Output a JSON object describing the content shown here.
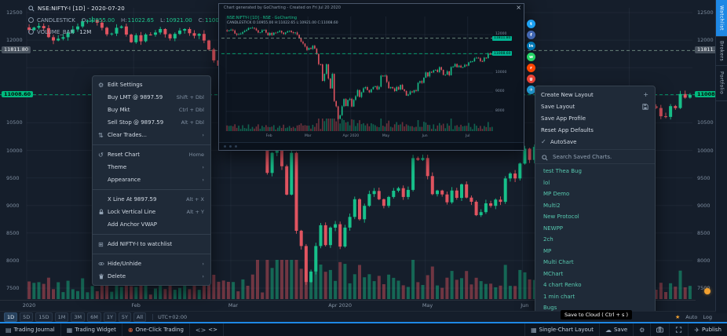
{
  "legend": {
    "symbol": "NSE:NIFTY-I [1D] - 2020-07-20",
    "candle": {
      "name": "CANDLESTICK",
      "o_label": "O:",
      "o": "10955.00",
      "h_label": "H:",
      "h": "11022.65",
      "l_label": "L:",
      "l": "10921.00",
      "c_label": "C:",
      "c": "11008.60"
    },
    "volume": {
      "name": "VOLUME_BAR",
      "value": "12M"
    }
  },
  "axes": {
    "prices": [
      12500,
      12000,
      10500,
      10000,
      9500,
      9000,
      8500,
      8000,
      7500
    ],
    "chips": [
      {
        "value": "11811.80",
        "price": 11811.8,
        "type": "dark"
      },
      {
        "value": "11008.60",
        "price": 11008.6,
        "type": "green"
      }
    ]
  },
  "chart_data": {
    "type": "candlestick",
    "symbol": "NSE:NIFTY-I",
    "interval": "1D",
    "date": "2020-07-20",
    "price_range": [
      7500,
      12500
    ],
    "last_ohlc": {
      "open": 10955.0,
      "high": 11022.65,
      "low": 10921.0,
      "close": 11008.6
    },
    "volume_label": "12M",
    "levels": [
      {
        "label": "11811.80",
        "price": 11811.8,
        "color": "#86a796"
      },
      {
        "label": "11008.60",
        "price": 11008.6,
        "color": "#00c582"
      }
    ],
    "month_ticks": [
      {
        "label": "2020",
        "index": 0
      },
      {
        "label": "Feb",
        "index": 22
      },
      {
        "label": "Mar",
        "index": 42
      },
      {
        "label": "Apr 2020",
        "index": 64
      },
      {
        "label": "May",
        "index": 82
      },
      {
        "label": "Jun",
        "index": 102
      },
      {
        "label": "Jul",
        "index": 124
      }
    ],
    "closes": [
      12182,
      12226,
      12257,
      12216,
      12053,
      11993,
      12025,
      12052,
      12129,
      12194,
      12248,
      12343,
      12352,
      12362,
      12316,
      12224,
      12106,
      12119,
      12224,
      12248,
      12101,
      11962,
      12089,
      11980,
      12101,
      12098,
      12138,
      12201,
      12107,
      12032,
      12113,
      12174,
      12201,
      12126,
      12080,
      12113,
      11993,
      11829,
      11633,
      11535,
      11380,
      11202,
      11303,
      11251,
      11422,
      11269,
      10989,
      10458,
      10451,
      9590,
      9955,
      10458,
      9711,
      9197,
      9955,
      8541,
      8263,
      7610,
      7801,
      8263,
      8641,
      8281,
      8598,
      8660,
      8254,
      8598,
      8792,
      9112,
      8749,
      8993,
      9206,
      9262,
      9112,
      8993,
      9154,
      9267,
      9313,
      9154,
      9282,
      9859,
      9826,
      9860,
      9533,
      9205,
      9270,
      9199,
      9056,
      9270,
      9137,
      9383,
      9142,
      9067,
      8823,
      8879,
      9039,
      8993,
      9106,
      9066,
      9490,
      9580,
      9490,
      9760,
      10030,
      9826,
      10062,
      10029,
      10142,
      10167,
      10046,
      10305,
      10167,
      9902,
      9914,
      10091,
      9881,
      10311,
      10334,
      10471,
      10305,
      10383,
      10288,
      10312,
      10430,
      10383,
      10552,
      10607,
      10608,
      10763,
      10799,
      10768,
      10618,
      10607,
      10802,
      10768,
      11022,
      10956,
      11008
    ]
  },
  "context_menu": {
    "items": [
      {
        "label": "Edit Settings",
        "icon": "gear"
      },
      {
        "label": "Buy LMT @ 9897.59",
        "shortcut": "Shift + Dbl"
      },
      {
        "label": "Buy Mkt",
        "shortcut": "Ctrl + Dbl"
      },
      {
        "label": "Sell Stop @ 9897.59",
        "shortcut": "Alt + Dbl"
      },
      {
        "label": "Clear Trades...",
        "icon": "swap",
        "submenu": true
      },
      {
        "divider": true
      },
      {
        "label": "Reset Chart",
        "icon": "reset",
        "shortcut": "Home"
      },
      {
        "label": "Theme",
        "submenu": true
      },
      {
        "label": "Appearance",
        "submenu": true
      },
      {
        "divider": true
      },
      {
        "label": "X Line At 9897.59",
        "shortcut": "Alt + X"
      },
      {
        "label": "Lock Vertical Line",
        "icon": "lock",
        "shortcut": "Alt + Y"
      },
      {
        "label": "Add Anchor VWAP"
      },
      {
        "divider": true
      },
      {
        "label": "Add NIFTY-I to watchlist",
        "icon": "grid-plus"
      },
      {
        "divider": true
      },
      {
        "label": "Hide/Unhide",
        "icon": "eye",
        "submenu": true
      },
      {
        "label": "Delete",
        "icon": "trash",
        "submenu": true
      }
    ]
  },
  "layout_menu": {
    "items": [
      {
        "label": "Create New Layout",
        "right_icon": "plus"
      },
      {
        "label": "Save Layout",
        "right_icon": "save"
      },
      {
        "label": "Save App Profile"
      },
      {
        "label": "Reset App Defaults"
      },
      {
        "label": "AutoSave",
        "icon": "check"
      }
    ],
    "search_placeholder": "Search Saved Charts.",
    "saved_charts": [
      "test Thea Bug",
      "lol",
      "MP Demo",
      "Multi2",
      "New Protocol",
      "NEWPP",
      "2ch",
      "MP",
      "Multi Chart",
      "MChart",
      "4 chart Renko",
      "1 min chart",
      "Bugs"
    ]
  },
  "popup": {
    "title": "Chart generated by GoCharting - Created on Fri Jul 20 2020",
    "close": "×",
    "legend1": "NSE:NIFTY-I [1D] · NSE · GoCharting",
    "legend2": "CANDLESTICK O:10955.00 H:11022.65 L:10921.00 C:11008.60",
    "axis": [
      12000,
      11000,
      10000,
      9000,
      8000
    ],
    "chips": [
      "11811.80",
      "11008.60"
    ],
    "x_labels": [
      {
        "label": "Feb",
        "index": 22
      },
      {
        "label": "Mar",
        "index": 42
      },
      {
        "label": "Apr 2020",
        "index": 64
      },
      {
        "label": "May",
        "index": 82
      },
      {
        "label": "Jun",
        "index": 102
      },
      {
        "label": "Jul",
        "index": 124
      }
    ],
    "social": [
      {
        "name": "twitter",
        "color": "#1da1f2",
        "glyph": "t"
      },
      {
        "name": "facebook",
        "color": "#4267b2",
        "glyph": "f"
      },
      {
        "name": "linkedin",
        "color": "#0077b5",
        "glyph": "in"
      },
      {
        "name": "whatsapp",
        "color": "#25d366",
        "glyph": "w"
      },
      {
        "name": "reddit",
        "color": "#ff4500",
        "glyph": "r"
      },
      {
        "name": "gmail",
        "color": "#ea4335",
        "glyph": "g"
      },
      {
        "name": "telegram",
        "color": "#229ed9",
        "glyph": "✈"
      }
    ]
  },
  "right_rail": {
    "tabs": [
      {
        "label": "Watchlist",
        "active": true
      },
      {
        "label": "Brokers",
        "active": false
      },
      {
        "label": "Portfolio",
        "active": false
      }
    ]
  },
  "timeframe_bar": {
    "ranges": [
      "1D",
      "5D",
      "15D",
      "1M",
      "3M",
      "6M",
      "1Y",
      "5Y",
      "All"
    ],
    "active_range": "1D",
    "timezone": "UTC+02:00",
    "right_labels": [
      "Auto",
      "Log"
    ],
    "star": "★"
  },
  "status_bar": {
    "left": [
      {
        "icon": "journal",
        "label": "Trading Journal"
      },
      {
        "icon": "widget",
        "label": "Trading Widget"
      },
      {
        "icon": "one-click",
        "label": "One-Click Trading"
      },
      {
        "icon": "code",
        "label": "<>"
      }
    ],
    "right": [
      {
        "icon": "layout",
        "label": "Single-Chart Layout"
      },
      {
        "icon": "cloud",
        "label": "Save"
      },
      {
        "icon": "gear",
        "label": ""
      },
      {
        "icon": "camera",
        "label": ""
      },
      {
        "icon": "expand",
        "label": ""
      },
      {
        "icon": "plane",
        "label": "Publish"
      }
    ],
    "tooltip": "Save to Cloud ( Ctrl + s )"
  },
  "colors": {
    "up": "#17c08a",
    "down": "#e05460",
    "accent_blue": "#1e88e5",
    "teal": "#57c7ae",
    "chip_green": "#00b97e",
    "orange": "#f0a030"
  }
}
